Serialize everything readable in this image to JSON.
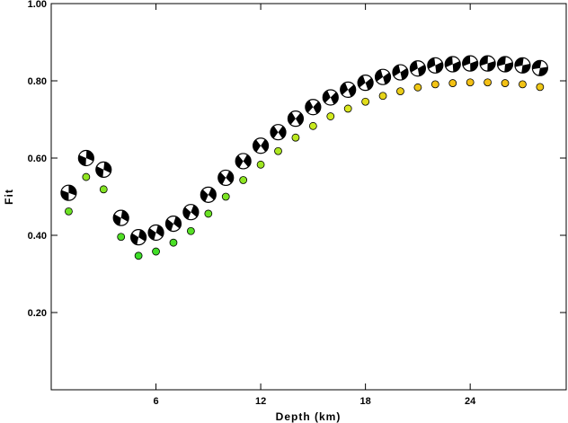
{
  "chart_data": {
    "type": "scatter",
    "title": "",
    "xlabel": "Depth (km)",
    "ylabel": "Fit",
    "xlim": [
      0,
      29.5
    ],
    "ylim": [
      0,
      1.0
    ],
    "x_ticks": [
      6,
      12,
      18,
      24
    ],
    "y_ticks": [
      0.2,
      0.4,
      0.6,
      0.8,
      1.0
    ],
    "x_tick_labels": [
      "6",
      "12",
      "18",
      "24"
    ],
    "y_tick_labels": [
      "0.20",
      "0.40",
      "0.60",
      "0.80",
      "1.00"
    ],
    "grid": false,
    "series": [
      {
        "marker": "focal-mechanism",
        "x": [
          1,
          2,
          3,
          4,
          5,
          6,
          7,
          8,
          9,
          10,
          11,
          12,
          13,
          14,
          15,
          16,
          17,
          18,
          19,
          20,
          21,
          22,
          23,
          24,
          25,
          26,
          27,
          28
        ],
        "y": [
          0.51,
          0.6,
          0.57,
          0.445,
          0.395,
          0.407,
          0.43,
          0.46,
          0.505,
          0.549,
          0.592,
          0.632,
          0.667,
          0.702,
          0.732,
          0.757,
          0.777,
          0.795,
          0.81,
          0.822,
          0.832,
          0.84,
          0.843,
          0.845,
          0.845,
          0.843,
          0.84,
          0.833
        ]
      },
      {
        "marker": "small-circle",
        "x": [
          1,
          2,
          3,
          4,
          5,
          6,
          7,
          8,
          9,
          10,
          11,
          12,
          13,
          14,
          15,
          16,
          17,
          18,
          19,
          20,
          21,
          22,
          23,
          24,
          25,
          26,
          27,
          28
        ],
        "y": [
          0.462,
          0.551,
          0.519,
          0.396,
          0.347,
          0.358,
          0.381,
          0.411,
          0.456,
          0.5,
          0.543,
          0.583,
          0.618,
          0.653,
          0.683,
          0.708,
          0.728,
          0.746,
          0.761,
          0.773,
          0.783,
          0.791,
          0.794,
          0.796,
          0.796,
          0.794,
          0.791,
          0.784
        ]
      }
    ]
  }
}
